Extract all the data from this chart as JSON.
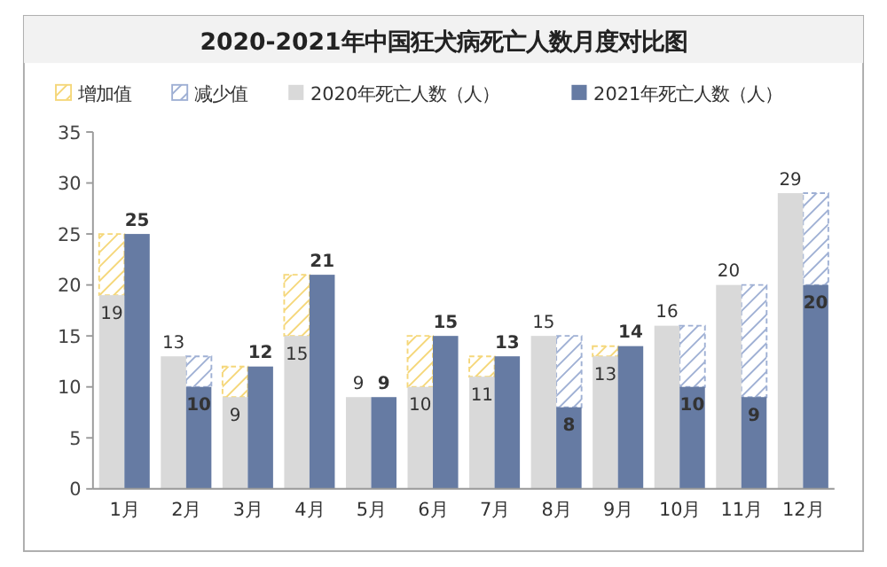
{
  "chart_data": {
    "type": "bar",
    "title": "2020-2021年中国狂犬病死亡人数月度对比图",
    "categories": [
      "1月",
      "2月",
      "3月",
      "4月",
      "5月",
      "6月",
      "7月",
      "8月",
      "9月",
      "10月",
      "11月",
      "12月"
    ],
    "series": [
      {
        "name": "增加值",
        "color": "#f5d77a",
        "values": [
          6,
          null,
          3,
          6,
          null,
          5,
          2,
          null,
          1,
          null,
          null,
          null
        ],
        "base": [
          19,
          null,
          9,
          15,
          null,
          10,
          11,
          null,
          13,
          null,
          null,
          null
        ]
      },
      {
        "name": "减少值",
        "color": "#9fb0d4",
        "values": [
          null,
          3,
          null,
          null,
          null,
          null,
          null,
          7,
          null,
          6,
          11,
          9
        ],
        "base": [
          null,
          10,
          null,
          null,
          null,
          null,
          null,
          8,
          null,
          10,
          9,
          20
        ]
      },
      {
        "name": "2020年死亡人数（人）",
        "color": "#d9d9d9",
        "values": [
          19,
          13,
          9,
          15,
          9,
          10,
          11,
          15,
          13,
          16,
          20,
          29
        ],
        "value_labels": [
          "19",
          "13",
          "9",
          "15",
          "9",
          "10",
          "11",
          "15",
          "13",
          "16",
          "20",
          "29"
        ]
      },
      {
        "name": "2021年死亡人数（人）",
        "color": "#667ba3",
        "values": [
          25,
          10,
          12,
          21,
          9,
          15,
          13,
          8,
          14,
          10,
          9,
          20
        ],
        "value_labels": [
          "25",
          "10",
          "12",
          "21",
          "9",
          "15",
          "13",
          "8",
          "14",
          "10",
          "9",
          "20"
        ]
      }
    ],
    "ylim": [
      0,
      35
    ],
    "yticks": [
      0,
      5,
      10,
      15,
      20,
      25,
      30,
      35
    ],
    "grid": false,
    "legend": "top"
  }
}
